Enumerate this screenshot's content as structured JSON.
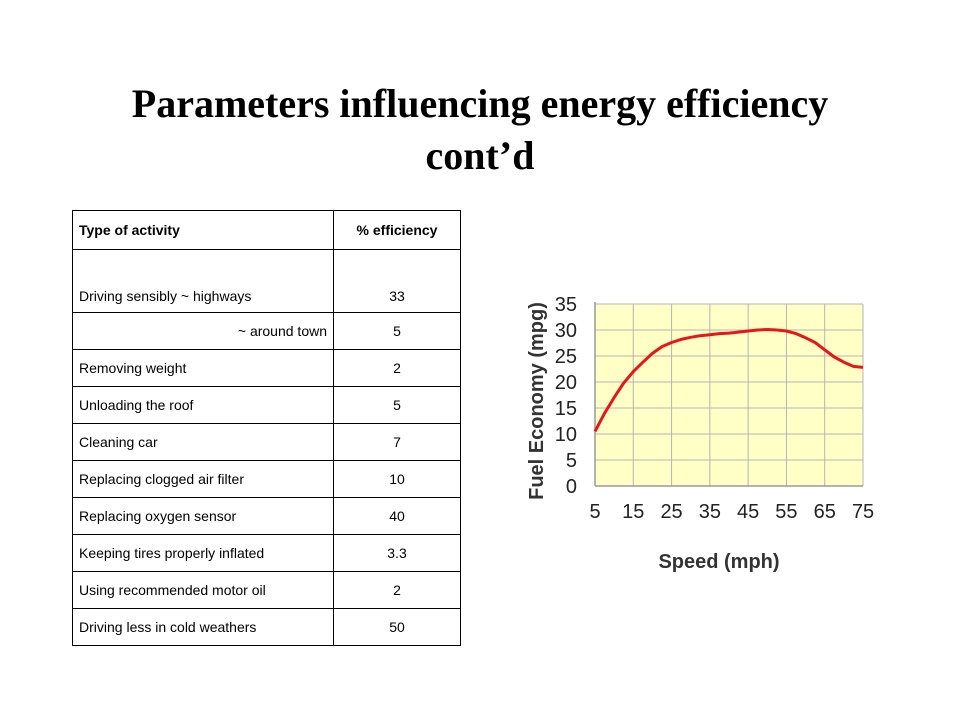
{
  "slide": {
    "title_line1": "Parameters influencing energy efficiency",
    "title_line2": "cont’d"
  },
  "table": {
    "headers": [
      "Type of activity",
      "% efficiency"
    ],
    "rows": [
      {
        "activity": "Driving sensibly   ~ highways",
        "efficiency": "33"
      },
      {
        "activity": "~ around town",
        "efficiency": "5"
      },
      {
        "activity": "Removing weight",
        "efficiency": "2"
      },
      {
        "activity": "Unloading the roof",
        "efficiency": "5"
      },
      {
        "activity": "Cleaning car",
        "efficiency": "7"
      },
      {
        "activity": "Replacing clogged air filter",
        "efficiency": "10"
      },
      {
        "activity": "Replacing oxygen sensor",
        "efficiency": "40"
      },
      {
        "activity": "Keeping tires properly inflated",
        "efficiency": "3.3"
      },
      {
        "activity": "Using recommended motor oil",
        "efficiency": "2"
      },
      {
        "activity": "Driving less in cold weathers",
        "efficiency": "50"
      }
    ]
  },
  "chart_data": {
    "type": "line",
    "title": "",
    "xlabel": "Speed (mph)",
    "ylabel": "Fuel Economy (mpg)",
    "xlim": [
      5,
      75
    ],
    "ylim": [
      0,
      35
    ],
    "xticks": [
      5,
      15,
      25,
      35,
      45,
      55,
      65,
      75
    ],
    "yticks": [
      0,
      5,
      10,
      15,
      20,
      25,
      30,
      35
    ],
    "grid": true,
    "plot_background": "#FFFFC6",
    "line_color": "#E8161B",
    "series": [
      {
        "x": [
          5,
          7.5,
          10,
          12.5,
          15,
          17.5,
          20,
          22.5,
          25,
          27.5,
          30,
          32.5,
          35,
          37.5,
          40,
          42.5,
          45,
          47.5,
          50,
          52.5,
          55,
          57.5,
          60,
          62.5,
          65,
          67.5,
          70,
          72.5,
          75
        ],
        "y": [
          10.5,
          14,
          17,
          19.8,
          22,
          23.8,
          25.5,
          26.8,
          27.6,
          28.2,
          28.6,
          28.9,
          29.1,
          29.3,
          29.4,
          29.6,
          29.8,
          30,
          30.1,
          30,
          29.8,
          29.3,
          28.5,
          27.6,
          26.2,
          24.8,
          23.8,
          23,
          22.8
        ]
      }
    ]
  }
}
